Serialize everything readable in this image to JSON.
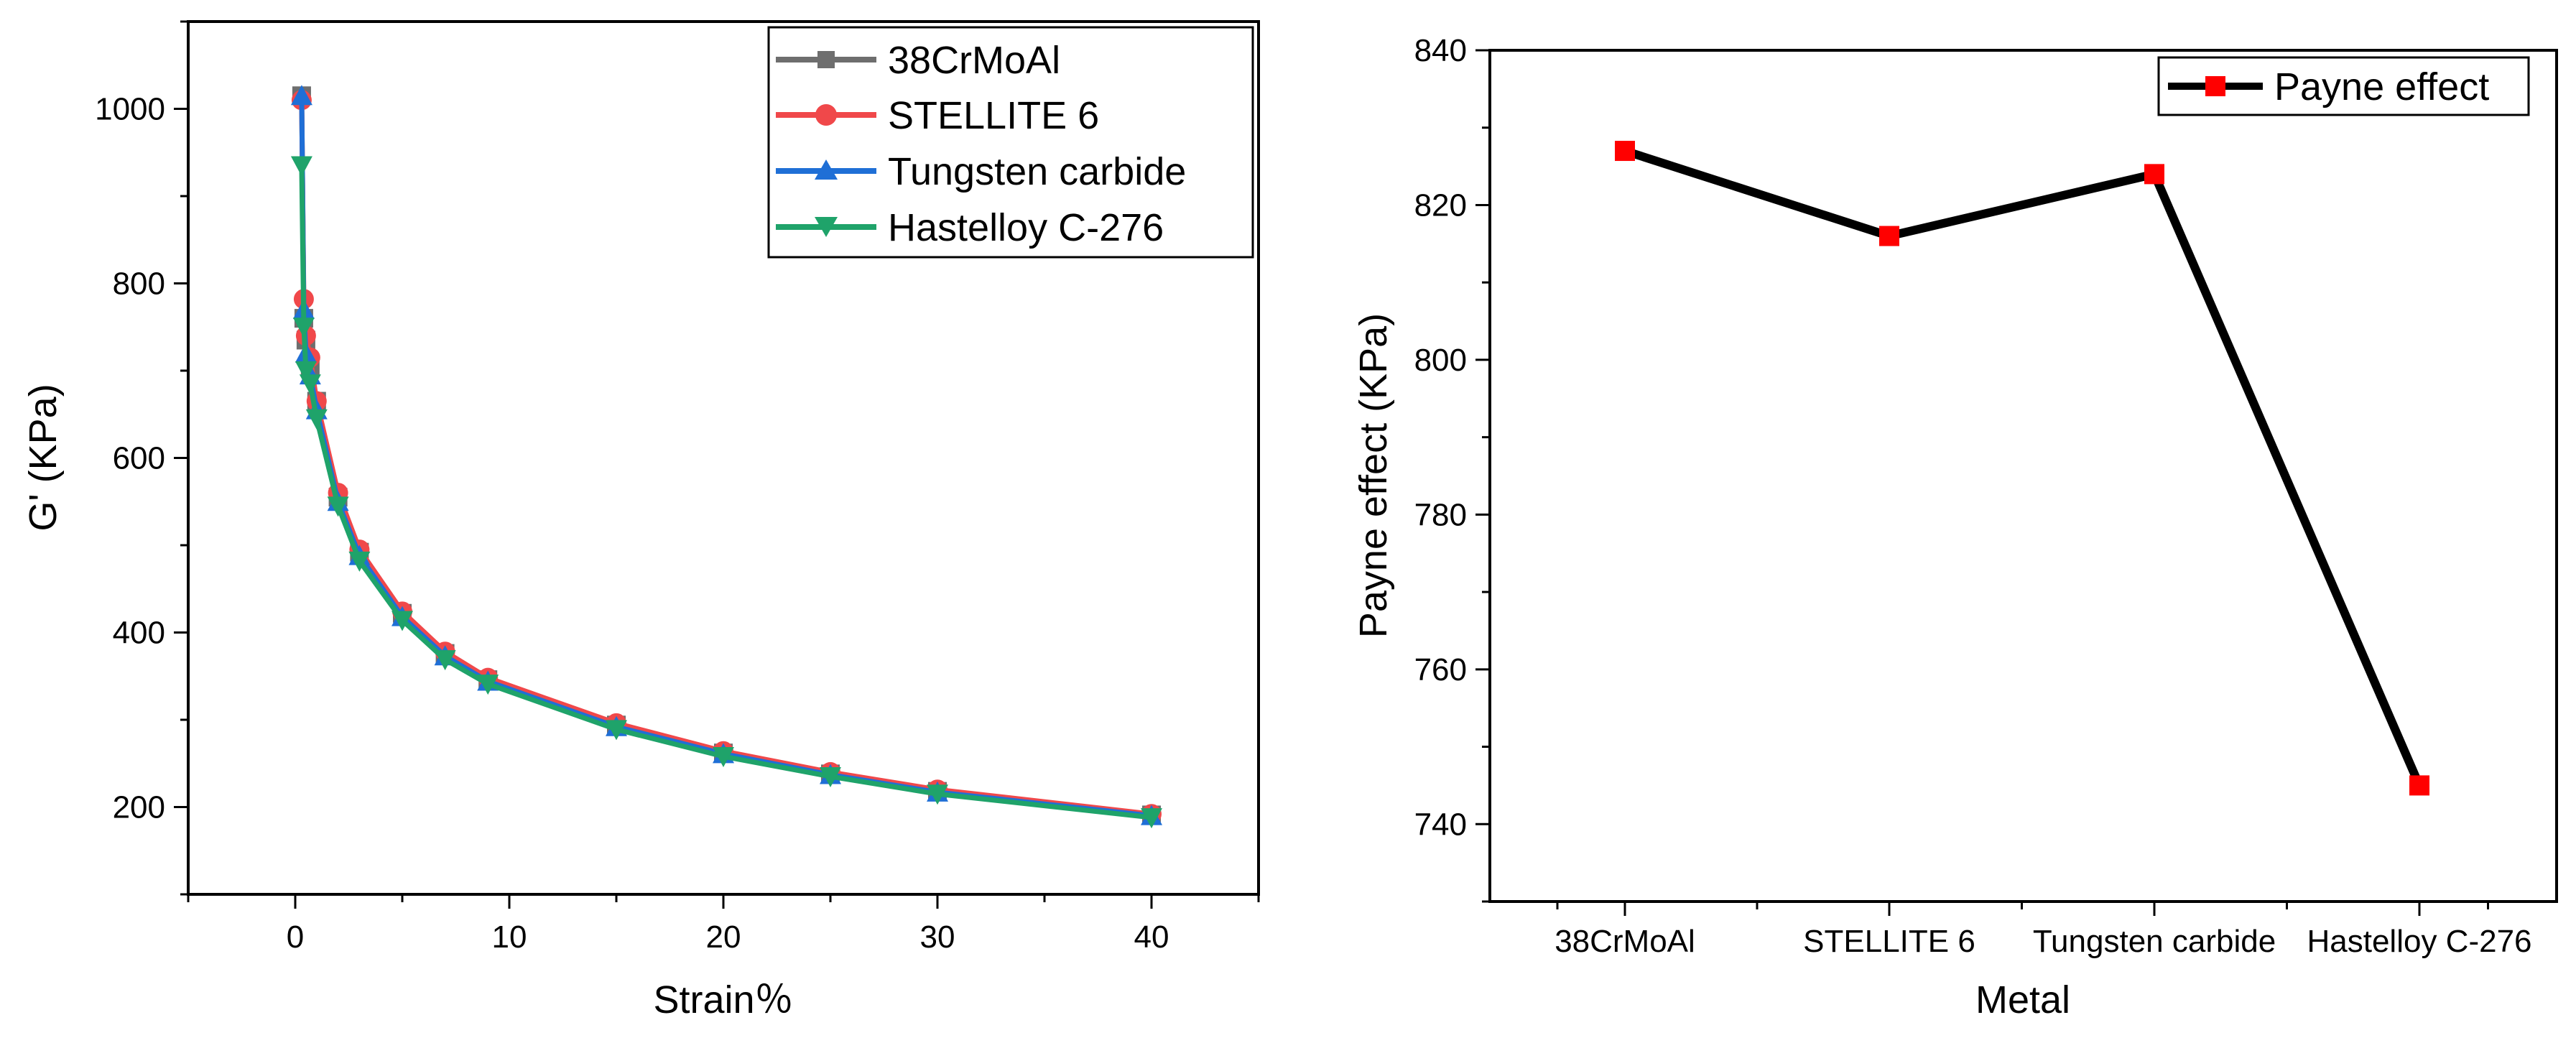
{
  "chart_data": [
    {
      "type": "line",
      "title": "",
      "xlabel": "Strain％",
      "ylabel": "G' (KPa)",
      "xlim": [
        -5,
        45
      ],
      "ylim": [
        100,
        1100
      ],
      "xticks": [
        0,
        10,
        20,
        30,
        40
      ],
      "yticks": [
        200,
        400,
        600,
        800,
        1000
      ],
      "legend_position": "top-right",
      "series": [
        {
          "name": "38CrMoAl",
          "color": "#6e6e6e",
          "marker": "square",
          "x": [
            0.3,
            0.4,
            0.5,
            0.7,
            1,
            2,
            3,
            5,
            7,
            9,
            15,
            20,
            25,
            30,
            40
          ],
          "y": [
            1015,
            760,
            735,
            705,
            665,
            555,
            492,
            422,
            376,
            346,
            294,
            262,
            238,
            218,
            191
          ]
        },
        {
          "name": "STELLITE 6",
          "color": "#f0484a",
          "marker": "circle",
          "x": [
            0.3,
            0.4,
            0.5,
            0.7,
            1,
            2,
            3,
            5,
            7,
            9,
            15,
            20,
            25,
            30,
            40
          ],
          "y": [
            1010,
            782,
            740,
            715,
            665,
            560,
            495,
            424,
            378,
            348,
            296,
            264,
            240,
            220,
            192
          ]
        },
        {
          "name": "Tungsten carbide",
          "color": "#1f6fd6",
          "marker": "triangle-up",
          "x": [
            0.3,
            0.4,
            0.5,
            0.7,
            1,
            2,
            3,
            5,
            7,
            9,
            15,
            20,
            25,
            30,
            40
          ],
          "y": [
            1015,
            770,
            720,
            695,
            655,
            550,
            488,
            418,
            373,
            344,
            292,
            261,
            237,
            217,
            190
          ]
        },
        {
          "name": "Hastelloy C-276",
          "color": "#1fa36a",
          "marker": "triangle-down",
          "x": [
            0.3,
            0.4,
            0.5,
            0.7,
            1,
            2,
            3,
            5,
            7,
            9,
            15,
            20,
            25,
            30,
            40
          ],
          "y": [
            935,
            750,
            700,
            685,
            645,
            545,
            482,
            414,
            369,
            341,
            289,
            258,
            235,
            215,
            188
          ]
        }
      ]
    },
    {
      "type": "line",
      "title": "",
      "xlabel": "Metal",
      "ylabel": "Payne effect (KPa)",
      "ylim": [
        730,
        840
      ],
      "yticks": [
        740,
        760,
        780,
        800,
        820,
        840
      ],
      "categories": [
        "38CrMoAl",
        "STELLITE 6",
        "Tungsten carbide",
        "Hastelloy C-276"
      ],
      "legend_position": "top-right",
      "series": [
        {
          "name": "Payne effect",
          "line_color": "#000000",
          "marker_color": "#ff0000",
          "marker": "square",
          "values": [
            827,
            816,
            824,
            745
          ]
        }
      ]
    }
  ]
}
